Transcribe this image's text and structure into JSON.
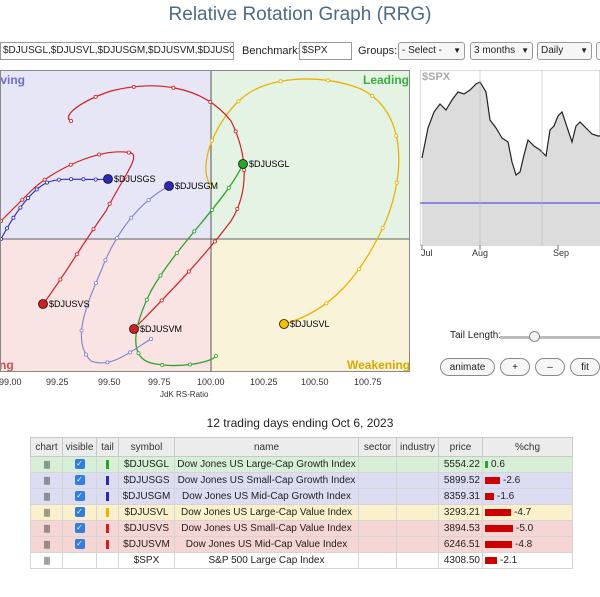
{
  "page": {
    "title": "Relative Rotation Graph (RRG)"
  },
  "toolbar": {
    "symbols_value": "$DJUSGL,$DJUSVL,$DJUSGM,$DJUSVM,$DJUSGS,$DJUSVS",
    "benchmark_label": "Benchmark:",
    "benchmark_value": "$SPX",
    "groups_label": "Groups:",
    "groups_value": "- Select -",
    "period_value": "3 months",
    "frequency_value": "Daily"
  },
  "rrg": {
    "quadrants": {
      "improving": "Improving",
      "leading": "Leading",
      "weakening": "Weakening",
      "lagging": "Lagging"
    },
    "x_ticks": [
      "99.00",
      "99.25",
      "99.50",
      "99.75",
      "100.00",
      "100.25",
      "100.50",
      "100.75"
    ],
    "x_axis_title": "JdK RS-Ratio",
    "colors": {
      "improving": "#e6e6f6",
      "leading": "#e4f3e4",
      "weakening": "#f9f4d9",
      "lagging": "#f9e3e3"
    },
    "labels": [
      {
        "symbol": "$DJUSGL",
        "color": "#27a527"
      },
      {
        "symbol": "$DJUSGS",
        "color": "#2a2ab8"
      },
      {
        "symbol": "$DJUSGM",
        "color": "#2a2ab8"
      },
      {
        "symbol": "$DJUSVS",
        "color": "#d42020"
      },
      {
        "symbol": "$DJUSVM",
        "color": "#d42020"
      },
      {
        "symbol": "$DJUSVL",
        "color": "#e8b400"
      }
    ]
  },
  "mini_chart": {
    "symbol": "$SPX",
    "month_labels": [
      "Jul",
      "Aug",
      "Sep"
    ]
  },
  "controls": {
    "tail_length_label": "Tail Length:",
    "animate_label": "animate",
    "plus_label": "+",
    "minus_label": "–",
    "fit_label": "fit"
  },
  "caption": "12 trading days ending Oct 6, 2023",
  "table": {
    "headers": [
      "chart",
      "visible",
      "tail",
      "symbol",
      "name",
      "sector",
      "industry",
      "price",
      "%chg"
    ],
    "rows": [
      {
        "symbol": "$DJUSGL",
        "name": "Dow Jones US Large-Cap Growth Index",
        "sector": "",
        "industry": "",
        "price": "5554.22",
        "chg": "0.6",
        "chg_value": 0.6,
        "tail_color": "#27a527",
        "row_bg": "#d7efd7"
      },
      {
        "symbol": "$DJUSGS",
        "name": "Dow Jones US Small-Cap Growth Index",
        "sector": "",
        "industry": "",
        "price": "5899.52",
        "chg": "-2.6",
        "chg_value": -2.6,
        "tail_color": "#2a2ab8",
        "row_bg": "#dcdcf2"
      },
      {
        "symbol": "$DJUSGM",
        "name": "Dow Jones US Mid-Cap Growth Index",
        "sector": "",
        "industry": "",
        "price": "8359.31",
        "chg": "-1.6",
        "chg_value": -1.6,
        "tail_color": "#2a2ab8",
        "row_bg": "#dcdcf2"
      },
      {
        "symbol": "$DJUSVL",
        "name": "Dow Jones US Large-Cap Value Index",
        "sector": "",
        "industry": "",
        "price": "3293.21",
        "chg": "-4.7",
        "chg_value": -4.7,
        "tail_color": "#e8b400",
        "row_bg": "#faf1cc"
      },
      {
        "symbol": "$DJUSVS",
        "name": "Dow Jones US Small-Cap Value Index",
        "sector": "",
        "industry": "",
        "price": "3894.53",
        "chg": "-5.0",
        "chg_value": -5.0,
        "tail_color": "#d42020",
        "row_bg": "#f6d5d5"
      },
      {
        "symbol": "$DJUSVM",
        "name": "Dow Jones US Mid-Cap Value Index",
        "sector": "",
        "industry": "",
        "price": "6246.51",
        "chg": "-4.8",
        "chg_value": -4.8,
        "tail_color": "#d42020",
        "row_bg": "#f6d5d5"
      },
      {
        "symbol": "$SPX",
        "name": "S&P 500 Large Cap Index",
        "sector": "",
        "industry": "",
        "price": "4308.50",
        "chg": "-2.1",
        "chg_value": -2.1,
        "tail_color": "",
        "row_bg": "#ffffff"
      }
    ]
  }
}
